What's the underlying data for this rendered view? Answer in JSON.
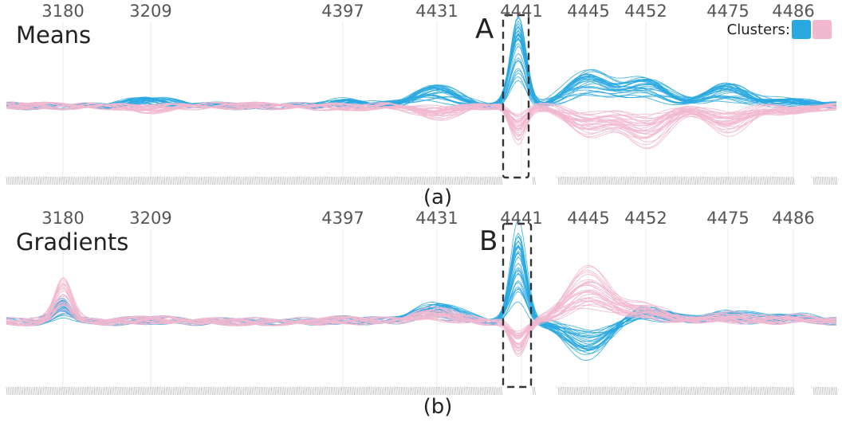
{
  "chart_data": [
    {
      "type": "line",
      "title": "Means",
      "caption": "(a)",
      "box_label": "A",
      "highlighted_tick": "4441",
      "x_tick_labels": [
        "3180",
        "3209",
        "4397",
        "4431",
        "4441",
        "4445",
        "4452",
        "4475",
        "4486"
      ],
      "grid": true,
      "series": [
        {
          "color": "#29a8e0",
          "values": [
            0,
            0.3,
            0.2,
            0.9,
            4.1,
            1.6,
            1.2,
            1.0,
            0.3
          ]
        },
        {
          "color": "#f1b8cf",
          "values": [
            0,
            -0.2,
            -0.1,
            -0.5,
            -1.6,
            -1.3,
            -1.8,
            -1.2,
            -0.3
          ]
        }
      ]
    },
    {
      "type": "line",
      "title": "Gradients",
      "caption": "(b)",
      "box_label": "B",
      "highlighted_tick": "4441",
      "x_tick_labels": [
        "3180",
        "3209",
        "4397",
        "4431",
        "4441",
        "4445",
        "4452",
        "4475",
        "4486"
      ],
      "grid": true,
      "series": [
        {
          "color": "#29a8e0",
          "values": [
            1.0,
            0.1,
            0.1,
            0.8,
            4.2,
            -1.5,
            0.6,
            0.4,
            0.3
          ]
        },
        {
          "color": "#f1b8cf",
          "values": [
            1.8,
            0.1,
            0.1,
            0.5,
            -1.4,
            2.2,
            0.6,
            0.3,
            0.2
          ]
        }
      ]
    }
  ],
  "legend": {
    "label": "Clusters:",
    "colors": [
      "#29a8e0",
      "#f1b8cf"
    ]
  }
}
